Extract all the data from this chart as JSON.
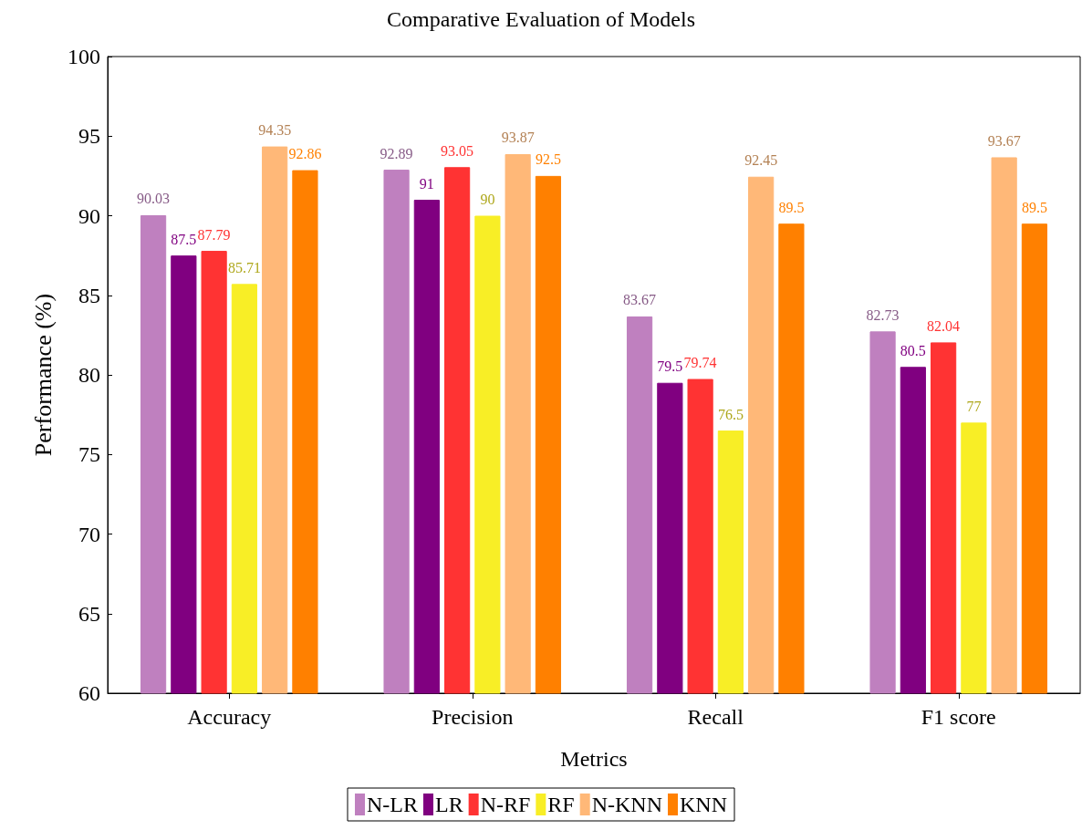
{
  "chart_data": {
    "type": "bar",
    "title": "Comparative Evaluation of Models",
    "xlabel": "Metrics",
    "ylabel": "Performance (%)",
    "categories": [
      "Accuracy",
      "Precision",
      "Recall",
      "F1 score"
    ],
    "series": [
      {
        "name": "N-LR",
        "color": "#bf80bf",
        "values": [
          90.03,
          92.89,
          83.67,
          82.73
        ]
      },
      {
        "name": "LR",
        "color": "#800080",
        "values": [
          87.5,
          91,
          79.5,
          80.5
        ]
      },
      {
        "name": "N-RF",
        "color": "#ff3333",
        "values": [
          87.79,
          93.05,
          79.74,
          82.04
        ]
      },
      {
        "name": "RF",
        "color": "#f8ee26",
        "values": [
          85.71,
          90,
          76.5,
          77
        ]
      },
      {
        "name": "N-KNN",
        "color": "#ffb878",
        "values": [
          94.35,
          93.87,
          92.45,
          93.67
        ]
      },
      {
        "name": "KNN",
        "color": "#ff8000",
        "values": [
          92.86,
          92.5,
          89.5,
          89.5
        ]
      }
    ],
    "ylim": [
      60,
      100
    ],
    "yticks": [
      60,
      65,
      70,
      75,
      80,
      85,
      90,
      95,
      100
    ],
    "grid": false,
    "legend": "bottom",
    "data_labels": true
  }
}
